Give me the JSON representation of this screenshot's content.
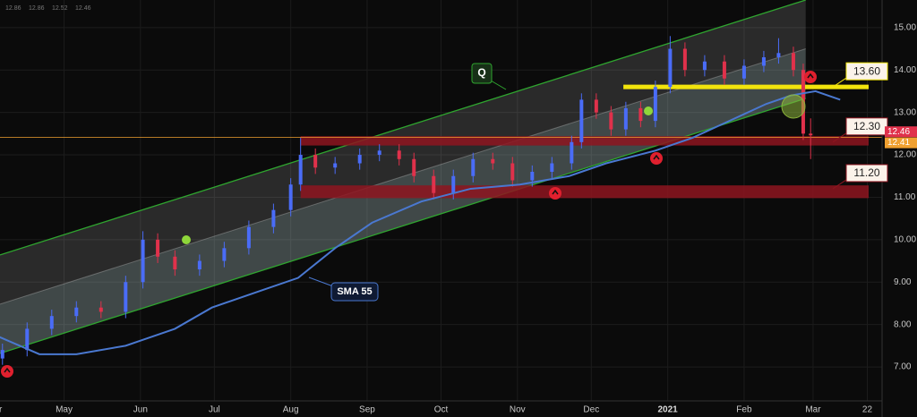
{
  "chart_data": {
    "type": "candlestick",
    "ohlc_header": [
      12.86,
      12.86,
      12.52,
      12.46
    ],
    "x": [
      5,
      15,
      25,
      35,
      45,
      55,
      62,
      68,
      75,
      85,
      95,
      105,
      115,
      122,
      126,
      132,
      140,
      150,
      158,
      166,
      172,
      180,
      188,
      196,
      204,
      212,
      220,
      228,
      236,
      240,
      246,
      252,
      258,
      264,
      270,
      276,
      282,
      290,
      298,
      306,
      314,
      320,
      326,
      330,
      333
    ],
    "open": [
      7.2,
      7.4,
      7.9,
      8.2,
      8.4,
      8.3,
      9.0,
      10.0,
      9.6,
      9.3,
      9.5,
      9.8,
      10.3,
      10.7,
      11.3,
      12.0,
      11.7,
      11.8,
      12.0,
      12.1,
      11.9,
      11.5,
      11.1,
      11.5,
      11.9,
      11.8,
      11.4,
      11.6,
      11.8,
      12.3,
      13.3,
      13.0,
      12.6,
      13.1,
      12.8,
      13.6,
      14.5,
      14.0,
      14.2,
      13.8,
      14.1,
      14.3,
      14.4,
      14.0,
      12.5
    ],
    "high": [
      7.55,
      8.05,
      8.35,
      8.55,
      8.55,
      9.15,
      10.2,
      10.15,
      9.75,
      9.65,
      9.95,
      10.45,
      10.85,
      11.45,
      12.4,
      12.15,
      11.95,
      12.15,
      12.25,
      12.25,
      12.05,
      11.65,
      11.65,
      12.05,
      12.05,
      11.95,
      11.75,
      11.95,
      12.45,
      13.45,
      13.45,
      13.15,
      13.25,
      13.25,
      13.75,
      14.8,
      14.65,
      14.35,
      14.35,
      14.25,
      14.45,
      14.75,
      14.55,
      14.15,
      12.86
    ],
    "low": [
      7.05,
      7.25,
      7.75,
      8.05,
      8.15,
      8.15,
      8.85,
      9.45,
      9.15,
      9.15,
      9.35,
      9.65,
      10.15,
      10.55,
      11.15,
      11.55,
      11.55,
      11.65,
      11.85,
      11.75,
      11.35,
      10.95,
      10.95,
      11.35,
      11.65,
      11.25,
      11.25,
      11.45,
      11.65,
      12.15,
      12.85,
      12.45,
      12.45,
      12.65,
      12.65,
      13.45,
      13.85,
      13.85,
      13.65,
      13.65,
      13.95,
      14.15,
      13.85,
      12.35,
      11.9
    ],
    "close": [
      7.4,
      7.9,
      8.2,
      8.4,
      8.3,
      9.0,
      10.0,
      9.6,
      9.3,
      9.5,
      9.8,
      10.3,
      10.7,
      11.3,
      12.0,
      11.7,
      11.8,
      12.0,
      12.1,
      11.9,
      11.5,
      11.1,
      11.5,
      11.9,
      11.8,
      11.4,
      11.6,
      11.8,
      12.3,
      13.3,
      13.0,
      12.6,
      13.1,
      12.8,
      13.6,
      14.5,
      14.0,
      14.2,
      13.8,
      14.1,
      14.3,
      14.4,
      14.0,
      12.5,
      12.46
    ],
    "up_color": "#4a6cf7",
    "down_color": "#e0314b",
    "xlim": [
      4,
      362
    ],
    "xticks": [
      {
        "value": 2,
        "label": "Apr"
      },
      {
        "value": 30,
        "label": "May"
      },
      {
        "value": 61,
        "label": "Jun"
      },
      {
        "value": 91,
        "label": "Jul"
      },
      {
        "value": 122,
        "label": "Aug"
      },
      {
        "value": 153,
        "label": "Sep"
      },
      {
        "value": 183,
        "label": "Oct"
      },
      {
        "value": 214,
        "label": "Nov"
      },
      {
        "value": 244,
        "label": "Dec"
      },
      {
        "value": 275,
        "label": "2021"
      },
      {
        "value": 306,
        "label": "Feb"
      },
      {
        "value": 334,
        "label": "Mar"
      },
      {
        "value": 356,
        "label": "22"
      }
    ],
    "ylim": [
      6.2,
      15.65
    ],
    "yticks": [
      {
        "value": 7,
        "label": "7.00"
      },
      {
        "value": 8,
        "label": "8.00"
      },
      {
        "value": 9,
        "label": "9.00"
      },
      {
        "value": 10,
        "label": "10.00"
      },
      {
        "value": 11,
        "label": "11.00"
      },
      {
        "value": 12,
        "label": "12.00"
      },
      {
        "value": 13,
        "label": "13.00"
      },
      {
        "value": 14,
        "label": "14.00"
      },
      {
        "value": 15,
        "label": "15.00"
      }
    ],
    "grid": true,
    "sma": {
      "name": "SMA 55",
      "color": "#4a78d0",
      "x": [
        0,
        20,
        35,
        55,
        75,
        90,
        110,
        125,
        140,
        155,
        175,
        195,
        215,
        235,
        250,
        270,
        285,
        300,
        315,
        325,
        335,
        345
      ],
      "values": [
        7.8,
        7.3,
        7.3,
        7.5,
        7.9,
        8.4,
        8.8,
        9.1,
        9.8,
        10.4,
        10.9,
        11.2,
        11.3,
        11.5,
        11.8,
        12.1,
        12.4,
        12.8,
        13.2,
        13.4,
        13.5,
        13.3
      ]
    },
    "channel": {
      "label": "Q",
      "color": "#2fa52f",
      "x": [
        4,
        331
      ],
      "upper": [
        9.64,
        15.65
      ],
      "middle": [
        8.48,
        14.5
      ],
      "lower": [
        7.32,
        13.33
      ]
    },
    "levels": [
      {
        "value": 13.6,
        "label": "13.60",
        "color": "#f2e40c",
        "x_start": 257
      },
      {
        "value": 12.3,
        "label": "12.30",
        "color": "#8e1520",
        "x_start": 126,
        "band": [
          12.22,
          12.44
        ]
      },
      {
        "value": 11.2,
        "label": "11.20",
        "color": "#8e1520",
        "x_start": 126,
        "band": [
          10.98,
          11.28
        ]
      }
    ],
    "price_tags": [
      {
        "value": 12.46,
        "color": "#e0314b"
      },
      {
        "value": 12.41,
        "color": "#f0a030"
      }
    ]
  }
}
